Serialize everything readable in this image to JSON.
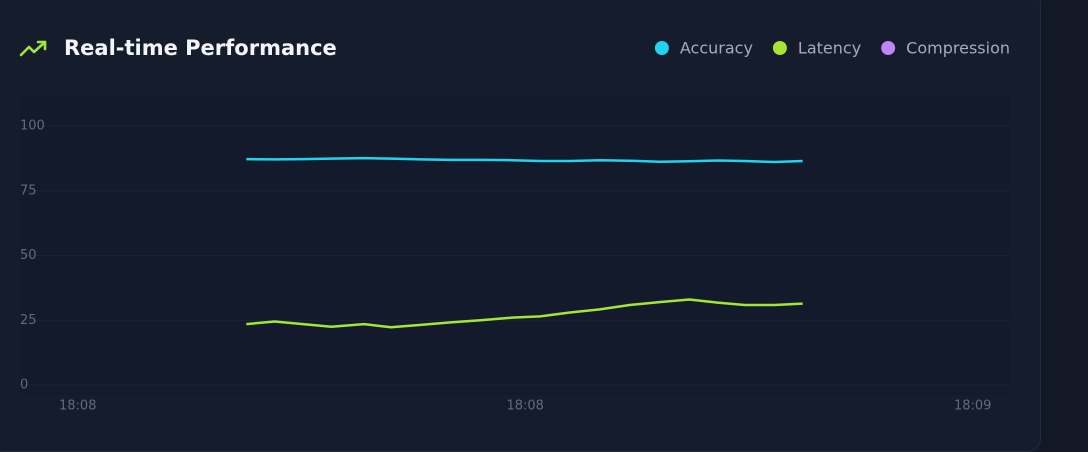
{
  "chart_data": {
    "type": "line",
    "title": "Real-time Performance",
    "x": [
      11.3,
      13.2,
      15.1,
      17.0,
      19.2,
      21.0,
      23.0,
      25.0,
      27.0,
      29.1,
      31.0,
      33.0,
      35.0,
      37.0,
      39.0,
      41.0,
      42.9,
      44.7,
      46.7,
      48.6
    ],
    "xlim": [
      -3,
      62.5
    ],
    "xticks": [
      {
        "value": 0,
        "label": "18:08"
      },
      {
        "value": 30,
        "label": "18:08"
      },
      {
        "value": 60,
        "label": "18:09"
      }
    ],
    "ylim": [
      0,
      100
    ],
    "yticks": [
      0,
      25,
      50,
      75,
      100
    ],
    "grid": true,
    "series": [
      {
        "name": "Accuracy",
        "color": "#22d3ee",
        "values": [
          87.2,
          87.1,
          87.2,
          87.4,
          87.6,
          87.4,
          87.1,
          86.9,
          86.9,
          86.8,
          86.5,
          86.5,
          86.8,
          86.6,
          86.2,
          86.4,
          86.7,
          86.5,
          86.1,
          86.5
        ]
      },
      {
        "name": "Latency",
        "color": "#a3e635",
        "values": [
          23.5,
          24.5,
          23.5,
          22.5,
          23.5,
          22.3,
          23.2,
          24.2,
          25.0,
          26.0,
          26.5,
          28.0,
          29.2,
          30.9,
          32.0,
          33.0,
          31.8,
          30.9,
          30.9,
          31.4
        ]
      },
      {
        "name": "Compression",
        "color": "#c084fc",
        "values": [
          null,
          null,
          null,
          null,
          null,
          null,
          null,
          null,
          null,
          null,
          null,
          null,
          null,
          null,
          null,
          null,
          null,
          null,
          null,
          null
        ]
      }
    ]
  }
}
